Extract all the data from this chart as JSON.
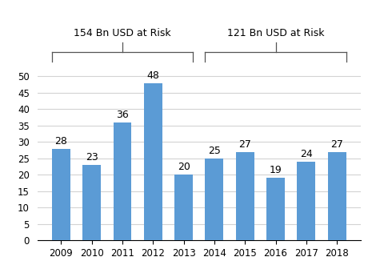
{
  "years": [
    "2009",
    "2010",
    "2011",
    "2012",
    "2013",
    "2014",
    "2015",
    "2016",
    "2017",
    "2018"
  ],
  "values": [
    28,
    23,
    36,
    48,
    20,
    25,
    27,
    19,
    24,
    27
  ],
  "bar_color": "#5B9BD5",
  "ylim": [
    0,
    55
  ],
  "yticks": [
    0,
    5,
    10,
    15,
    20,
    25,
    30,
    35,
    40,
    45,
    50
  ],
  "group1_label": "154 Bn USD at Risk",
  "group2_label": "121 Bn USD at Risk",
  "background_color": "#ffffff",
  "grid_color": "#d3d3d3",
  "label_fontsize": 9,
  "bar_label_fontsize": 9,
  "tick_fontsize": 8.5,
  "bar_width": 0.6
}
